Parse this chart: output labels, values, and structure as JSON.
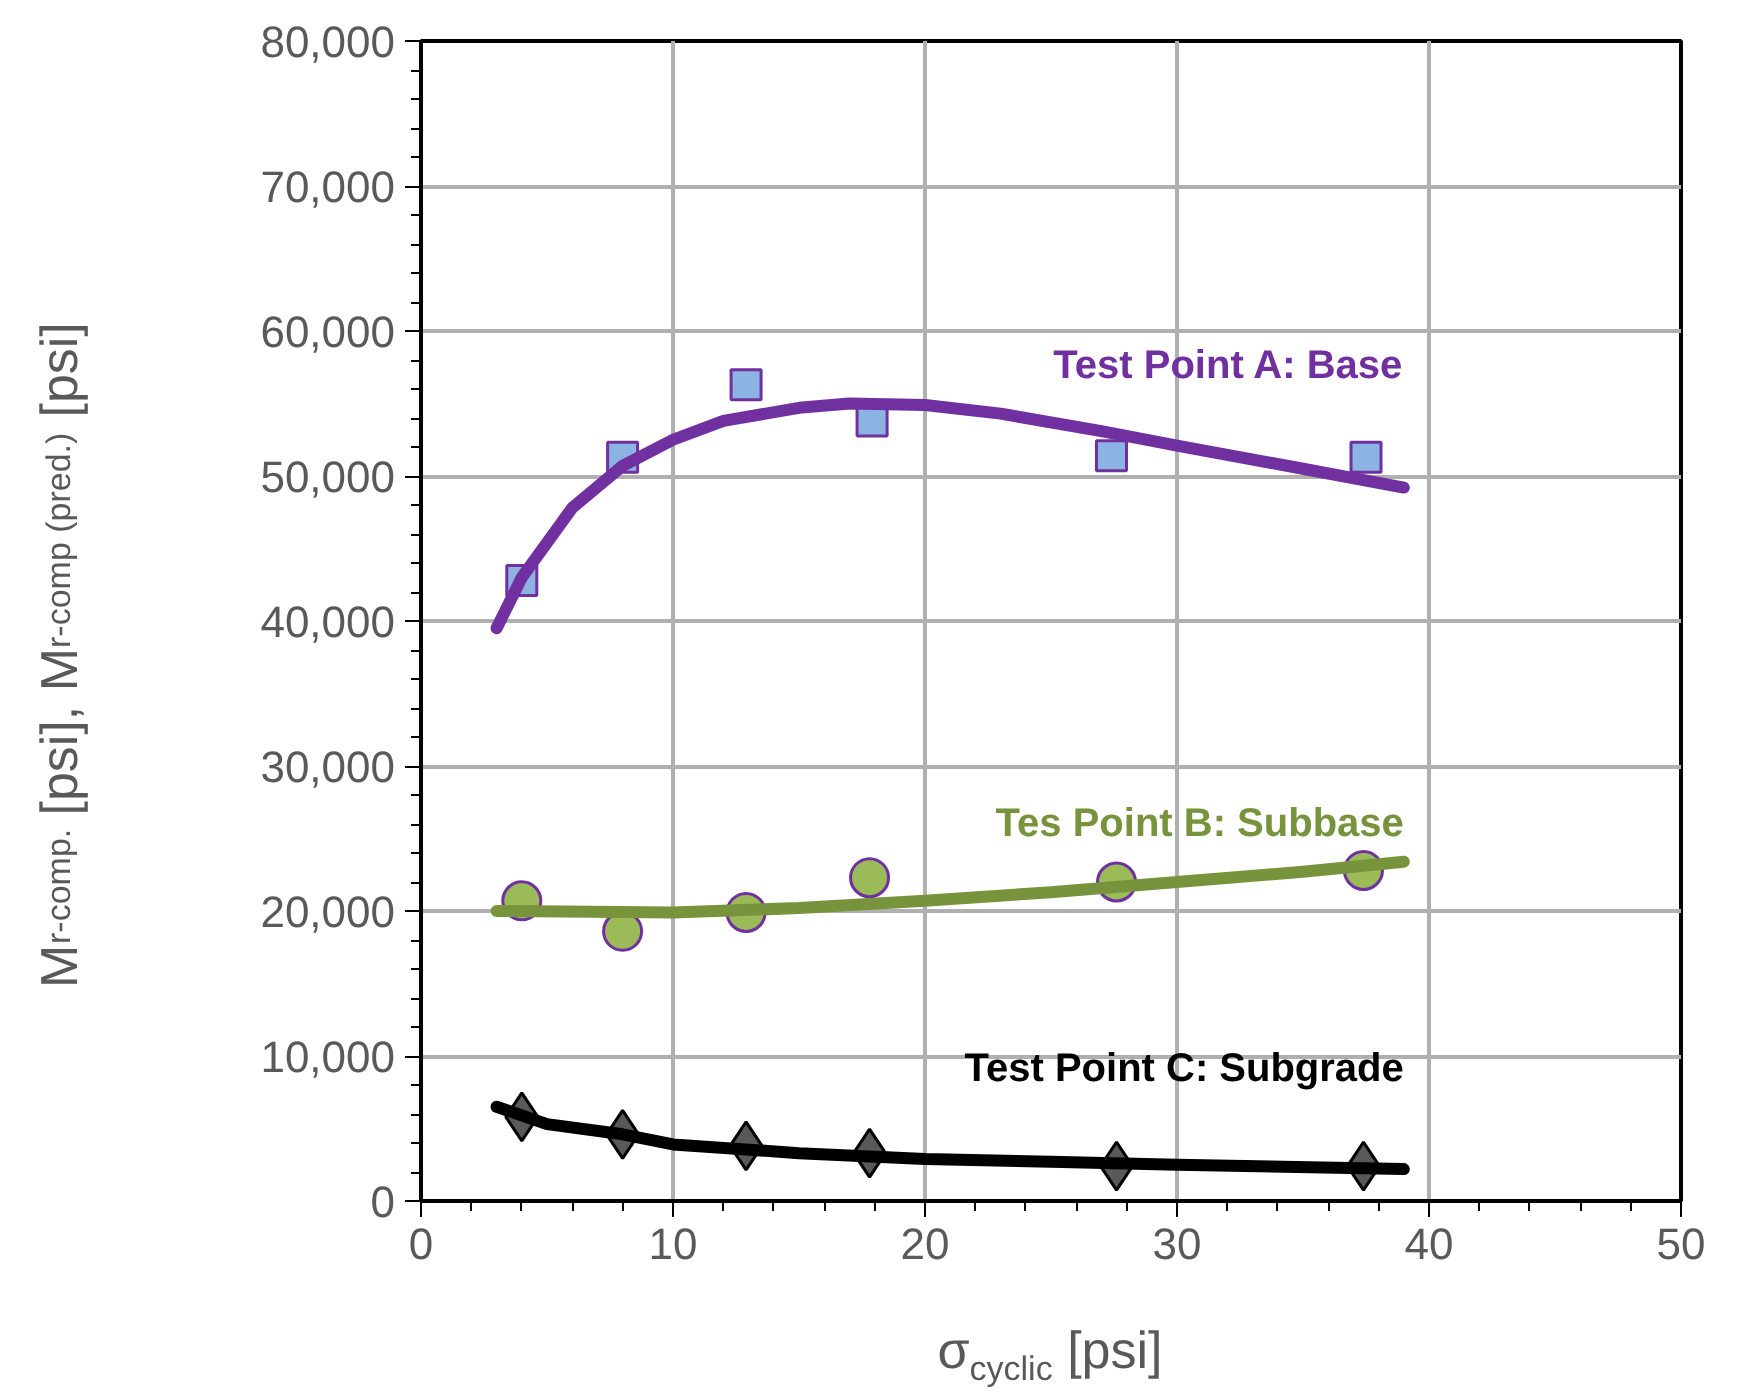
{
  "chart_data": {
    "type": "scatter",
    "xlabel": "σ$_{cyclic}$ [psi]",
    "ylabel": "M$_{r-comp.}$ [psi], M$_{r-comp (pred.)}$ [psi]",
    "xlim": [
      0,
      50
    ],
    "xticks": [
      0,
      10,
      20,
      30,
      40,
      50
    ],
    "ylim": [
      0,
      80000
    ],
    "yticks": [
      {
        "value": 0,
        "label": "0"
      },
      {
        "value": 10000,
        "label": "10,000"
      },
      {
        "value": 20000,
        "label": "20,000"
      },
      {
        "value": 30000,
        "label": "30,000"
      },
      {
        "value": 40000,
        "label": "40,000"
      },
      {
        "value": 50000,
        "label": "50,000"
      },
      {
        "value": 60000,
        "label": "60,000"
      },
      {
        "value": 70000,
        "label": "70,000"
      },
      {
        "value": 80000,
        "label": "80,000"
      }
    ],
    "grid": true,
    "legend": false,
    "series": [
      {
        "marker": "square",
        "color": "#8db3e2",
        "x": [
          4.0,
          8.0,
          12.9,
          17.9,
          27.4,
          37.5
        ],
        "values": [
          42800,
          51300,
          56300,
          53800,
          51400,
          51300
        ]
      },
      {
        "type": "line",
        "name": "Test Point A: Base",
        "color": "#7030a0",
        "x": [
          3,
          4,
          6,
          8,
          10,
          12,
          15,
          17,
          20,
          23,
          27,
          30,
          35,
          39
        ],
        "values": [
          39500,
          43000,
          47800,
          50700,
          52500,
          53800,
          54700,
          55000,
          54900,
          54300,
          53100,
          52100,
          50500,
          49200
        ]
      },
      {
        "type": "scatter",
        "marker": "circle",
        "color": "#9bbb59",
        "x": [
          4.0,
          8.0,
          12.9,
          17.8,
          27.6,
          37.4
        ],
        "values": [
          20700,
          18600,
          19900,
          22300,
          22000,
          22800
        ]
      },
      {
        "type": "line",
        "name": "Tes Point B: Subbase",
        "color": "#77933c",
        "x": [
          3,
          10,
          15,
          20,
          25,
          30,
          35,
          39
        ],
        "values": [
          20000,
          19900,
          20200,
          20700,
          21300,
          22000,
          22700,
          23400
        ]
      },
      {
        "type": "scatter",
        "marker": "diamond",
        "color": "#595959",
        "x": [
          4.0,
          8.0,
          12.9,
          17.8,
          27.6,
          37.4
        ],
        "values": [
          5800,
          4600,
          3800,
          3300,
          2400,
          2400
        ]
      },
      {
        "type": "line",
        "name": "Test Point C: Subgrade",
        "color": "#000000",
        "x": [
          3,
          5,
          8,
          10,
          15,
          20,
          25,
          30,
          39
        ],
        "values": [
          6500,
          5300,
          4600,
          3900,
          3300,
          2900,
          2700,
          2500,
          2200
        ]
      }
    ]
  }
}
